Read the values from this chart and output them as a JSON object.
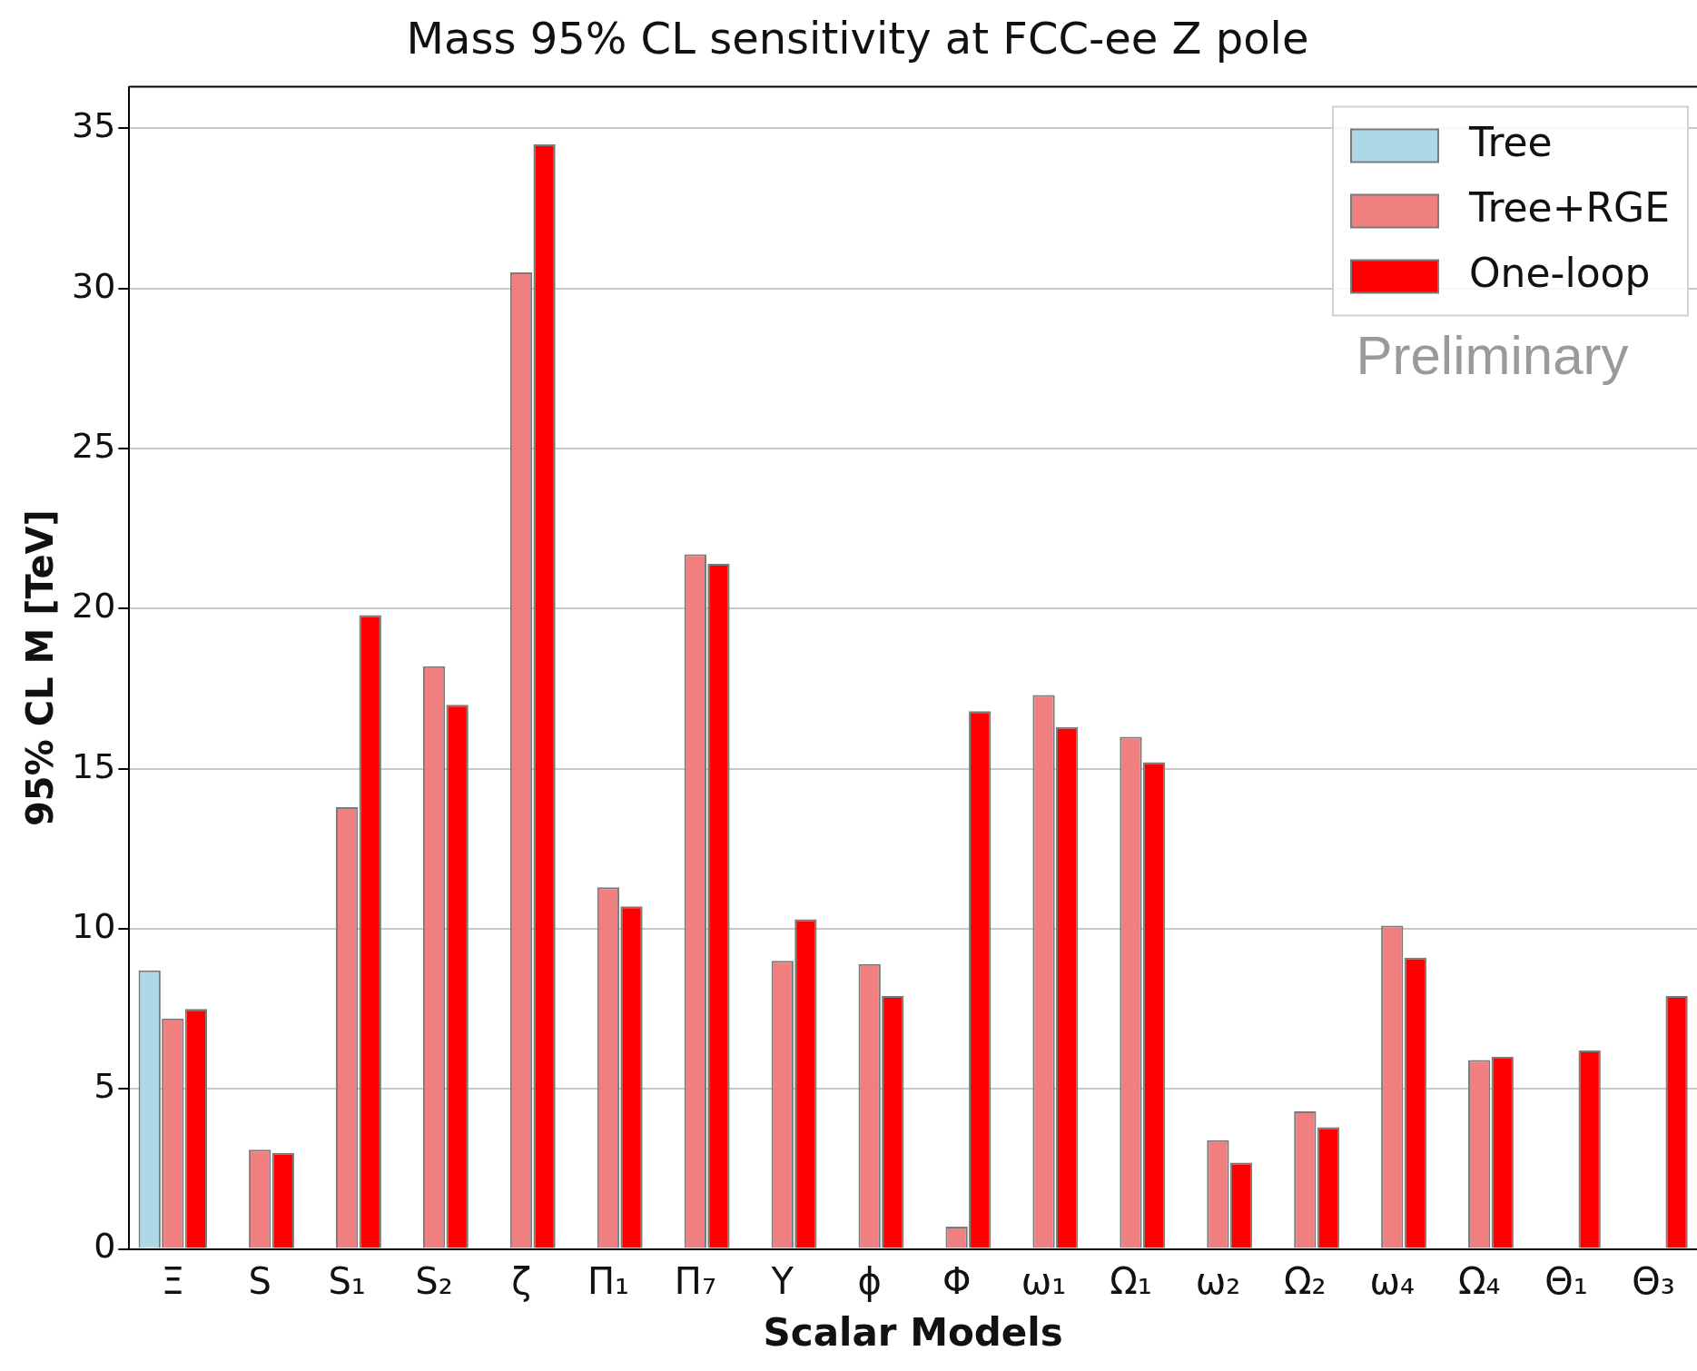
{
  "chart_data": {
    "type": "bar",
    "title": "Mass 95% CL sensitivity at FCC-ee Z pole",
    "xlabel": "Scalar Models",
    "ylabel": "95% CL M [TeV]",
    "categories": [
      "Ξ",
      "S",
      "S₁",
      "S₂",
      "ζ",
      "Π₁",
      "Π₇",
      "Υ",
      "ϕ",
      "Φ",
      "ω₁",
      "Ω₁",
      "ω₂",
      "Ω₂",
      "ω₄",
      "Ω₄",
      "Θ₁",
      "Θ₃"
    ],
    "series": [
      {
        "name": "Tree",
        "color": "#add8e6",
        "values": [
          8.7,
          null,
          null,
          null,
          null,
          null,
          null,
          null,
          null,
          null,
          null,
          null,
          null,
          null,
          null,
          null,
          null,
          null
        ]
      },
      {
        "name": "Tree+RGE",
        "color": "#f08080",
        "values": [
          7.2,
          3.1,
          13.8,
          18.2,
          30.5,
          11.3,
          21.7,
          9.0,
          8.9,
          0.7,
          17.3,
          16.0,
          3.4,
          4.3,
          10.1,
          5.9,
          null,
          null
        ]
      },
      {
        "name": "One-loop",
        "color": "#ff0000",
        "values": [
          7.5,
          3.0,
          19.8,
          17.0,
          34.5,
          10.7,
          21.4,
          10.3,
          7.9,
          16.8,
          16.3,
          15.2,
          2.7,
          3.8,
          9.1,
          6.0,
          6.2,
          7.9
        ]
      }
    ],
    "ylim": [
      0,
      36.3
    ],
    "yticks": [
      0,
      5,
      10,
      15,
      20,
      25,
      30,
      35
    ],
    "grid": "y",
    "legend": "top right",
    "annotations": [
      "Preliminary"
    ]
  }
}
